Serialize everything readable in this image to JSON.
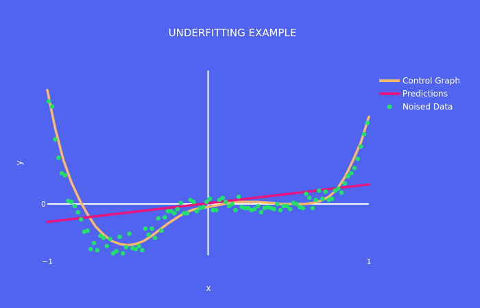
{
  "chart_data": {
    "type": "line",
    "title": "UNDERFITTING EXAMPLE",
    "xlabel": "x",
    "ylabel": "y",
    "xlim": [
      -1,
      1
    ],
    "ylim": [
      -0.5,
      1.3
    ],
    "x_ticks": [
      {
        "value": -1,
        "label": "−1"
      },
      {
        "value": 1,
        "label": "1"
      }
    ],
    "y_ticks": [
      {
        "value": 0,
        "label": "0"
      }
    ],
    "grid": false,
    "zeroline": true,
    "legend_position": "top-right",
    "background": "#5164f0",
    "series": [
      {
        "name": "Control Graph",
        "kind": "line",
        "color": "#fbb96b",
        "x": [
          -1.0,
          -0.95,
          -0.9,
          -0.85,
          -0.8,
          -0.75,
          -0.7,
          -0.65,
          -0.6,
          -0.55,
          -0.5,
          -0.45,
          -0.4,
          -0.35,
          -0.3,
          -0.25,
          -0.2,
          -0.15,
          -0.1,
          -0.05,
          0.0,
          0.05,
          0.1,
          0.15,
          0.2,
          0.25,
          0.3,
          0.35,
          0.4,
          0.45,
          0.5,
          0.55,
          0.6,
          0.65,
          0.7,
          0.75,
          0.8,
          0.85,
          0.9,
          0.95,
          1.0
        ],
        "y": [
          1.11,
          0.73,
          0.43,
          0.21,
          0.04,
          -0.1,
          -0.22,
          -0.3,
          -0.36,
          -0.39,
          -0.4,
          -0.39,
          -0.36,
          -0.31,
          -0.25,
          -0.19,
          -0.14,
          -0.09,
          -0.06,
          -0.04,
          -0.03,
          -0.015,
          0.0,
          0.02,
          0.02,
          0.02,
          0.02,
          0.015,
          0.01,
          0.0,
          0.0,
          0.0,
          0.0,
          0.01,
          0.03,
          0.07,
          0.14,
          0.26,
          0.42,
          0.6,
          0.85
        ]
      },
      {
        "name": "Predictions",
        "kind": "line",
        "color": "#e8157f",
        "x": [
          -1.0,
          1.0
        ],
        "y": [
          -0.175,
          0.19
        ]
      },
      {
        "name": "Noised Data",
        "kind": "scatter",
        "color": "#22e06a",
        "x": [
          -0.99,
          -0.97,
          -0.95,
          -0.93,
          -0.91,
          -0.89,
          -0.87,
          -0.85,
          -0.83,
          -0.81,
          -0.79,
          -0.77,
          -0.75,
          -0.73,
          -0.71,
          -0.69,
          -0.67,
          -0.65,
          -0.63,
          -0.61,
          -0.59,
          -0.57,
          -0.55,
          -0.53,
          -0.51,
          -0.49,
          -0.47,
          -0.45,
          -0.43,
          -0.41,
          -0.39,
          -0.37,
          -0.35,
          -0.33,
          -0.31,
          -0.29,
          -0.27,
          -0.25,
          -0.23,
          -0.21,
          -0.19,
          -0.17,
          -0.15,
          -0.13,
          -0.11,
          -0.09,
          -0.07,
          -0.05,
          -0.03,
          -0.01,
          0.01,
          0.03,
          0.05,
          0.07,
          0.09,
          0.11,
          0.13,
          0.15,
          0.17,
          0.19,
          0.21,
          0.23,
          0.25,
          0.27,
          0.29,
          0.31,
          0.33,
          0.35,
          0.37,
          0.39,
          0.41,
          0.43,
          0.45,
          0.47,
          0.49,
          0.51,
          0.53,
          0.55,
          0.57,
          0.59,
          0.61,
          0.63,
          0.65,
          0.67,
          0.69,
          0.71,
          0.73,
          0.75,
          0.77,
          0.79,
          0.81,
          0.83,
          0.85,
          0.87,
          0.89,
          0.91,
          0.93,
          0.95,
          0.97,
          0.99
        ],
        "y": [
          1.0,
          0.95,
          0.63,
          0.45,
          0.3,
          0.28,
          0.03,
          0.02,
          -0.02,
          -0.08,
          -0.15,
          -0.27,
          -0.26,
          -0.44,
          -0.38,
          -0.45,
          -0.31,
          -0.33,
          -0.41,
          -0.34,
          -0.48,
          -0.46,
          -0.32,
          -0.48,
          -0.42,
          -0.29,
          -0.43,
          -0.44,
          -0.41,
          -0.45,
          -0.24,
          -0.3,
          -0.24,
          -0.33,
          -0.14,
          -0.26,
          -0.13,
          -0.07,
          -0.07,
          -0.09,
          -0.05,
          0.01,
          -0.09,
          -0.09,
          0.04,
          0.02,
          -0.07,
          -0.04,
          -0.03,
          0.02,
          0.05,
          -0.06,
          -0.06,
          0.04,
          0.06,
          0.02,
          -0.02,
          0.0,
          -0.06,
          0.07,
          -0.03,
          -0.04,
          -0.04,
          -0.06,
          -0.05,
          -0.02,
          -0.08,
          -0.04,
          -0.03,
          -0.04,
          -0.05,
          0.0,
          -0.06,
          -0.02,
          -0.02,
          -0.05,
          0.01,
          0.0,
          -0.03,
          -0.04,
          0.1,
          0.06,
          -0.04,
          0.04,
          0.13,
          0.05,
          0.12,
          0.04,
          0.05,
          0.13,
          0.15,
          0.11,
          0.2,
          0.27,
          0.3,
          0.35,
          0.44,
          0.56,
          0.68,
          0.79
        ]
      }
    ]
  }
}
